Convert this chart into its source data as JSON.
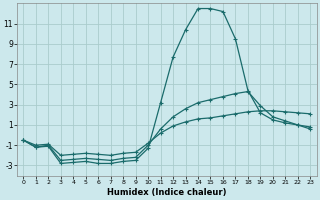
{
  "xlabel": "Humidex (Indice chaleur)",
  "bg_color": "#cce8ec",
  "grid_color": "#aacccc",
  "line_color": "#1a6b6b",
  "xlim": [
    -0.5,
    23.5
  ],
  "ylim": [
    -4,
    13
  ],
  "xticks": [
    0,
    1,
    2,
    3,
    4,
    5,
    6,
    7,
    8,
    9,
    10,
    11,
    12,
    13,
    14,
    15,
    16,
    17,
    18,
    19,
    20,
    21,
    22,
    23
  ],
  "yticks": [
    -3,
    -1,
    1,
    3,
    5,
    7,
    9,
    11
  ],
  "line1_x": [
    0,
    1,
    2,
    3,
    4,
    5,
    6,
    7,
    8,
    9,
    10,
    11,
    12,
    13,
    14,
    15,
    16,
    17,
    18,
    19,
    20,
    21,
    22,
    23
  ],
  "line1_y": [
    -0.5,
    -1.2,
    -1.1,
    -2.8,
    -2.7,
    -2.6,
    -2.8,
    -2.8,
    -2.6,
    -2.5,
    -1.3,
    3.2,
    7.7,
    10.4,
    12.5,
    12.5,
    12.2,
    9.5,
    4.4,
    2.2,
    1.5,
    1.2,
    1.0,
    0.8
  ],
  "line2_x": [
    0,
    1,
    2,
    3,
    4,
    5,
    6,
    7,
    8,
    9,
    10,
    11,
    12,
    13,
    14,
    15,
    16,
    17,
    18,
    19,
    20,
    21,
    22,
    23
  ],
  "line2_y": [
    -0.5,
    -1.2,
    -1.0,
    -2.5,
    -2.4,
    -2.3,
    -2.4,
    -2.5,
    -2.3,
    -2.2,
    -1.0,
    0.6,
    1.8,
    2.6,
    3.2,
    3.5,
    3.8,
    4.1,
    4.3,
    2.9,
    1.8,
    1.4,
    1.0,
    0.6
  ],
  "line3_x": [
    0,
    1,
    2,
    3,
    4,
    5,
    6,
    7,
    8,
    9,
    10,
    11,
    12,
    13,
    14,
    15,
    16,
    17,
    18,
    19,
    20,
    21,
    22,
    23
  ],
  "line3_y": [
    -0.5,
    -1.0,
    -0.9,
    -2.0,
    -1.9,
    -1.8,
    -1.9,
    -2.0,
    -1.8,
    -1.7,
    -0.8,
    0.2,
    0.9,
    1.3,
    1.6,
    1.7,
    1.9,
    2.1,
    2.3,
    2.4,
    2.4,
    2.3,
    2.2,
    2.1
  ]
}
